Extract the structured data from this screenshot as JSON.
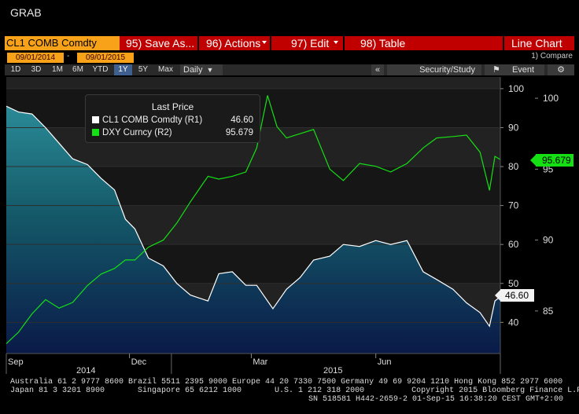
{
  "app_title": "GRAB",
  "toolbar": {
    "security": "CL1 COMB Comdty",
    "save": "95) Save As...",
    "actions": "96) Actions",
    "edit": "97) Edit",
    "table": "98) Table",
    "chart_type": "Line Chart"
  },
  "dates": {
    "start": "09/01/2014",
    "dash": "-",
    "end": "09/01/2015",
    "compare": "1) Compare"
  },
  "ranges": [
    "1D",
    "3D",
    "1M",
    "6M",
    "YTD",
    "1Y",
    "5Y",
    "Max"
  ],
  "active_range": "1Y",
  "period": "Daily",
  "toolbar2": {
    "collapse": "«",
    "security_study": "Security/Study",
    "event": "Event",
    "gear": "⚙"
  },
  "legend": {
    "title": "Last Price",
    "rows": [
      {
        "label": "CL1 COMB Comdty  (R1)",
        "value": "46.60",
        "color": "#ffffff"
      },
      {
        "label": "DXY Curncy  (R2)",
        "value": "95.679",
        "color": "#14e014"
      }
    ]
  },
  "badges": {
    "dxy_last": "95.679",
    "cl1_last": "46.60"
  },
  "colors": {
    "toolbar_red": "#c00000",
    "orange": "#f7a218",
    "green": "#14e014",
    "teal_top": "#1d6e7e",
    "navy_bottom": "#0a1a40"
  },
  "footer": {
    "line1": "Australia 61 2 9777 8600 Brazil 5511 2395 9000 Europe 44 20 7330 7500 Germany 49 69 9204 1210 Hong Kong 852 2977 6000",
    "line2": "Japan 81 3 3201 8900       Singapore 65 6212 1000       U.S. 1 212 318 2000          Copyright 2015 Bloomberg Finance L.P.",
    "line3": "SN 518581 H442-2659-2 01-Sep-15 16:38:20 CEST GMT+2:00"
  },
  "chart_data": {
    "type": "line",
    "title": "",
    "x_ticks": [
      "Sep",
      "Dec",
      "Mar",
      "Jun"
    ],
    "year_labels": [
      "2014",
      "2015"
    ],
    "r1_ticks": [
      "100",
      "90",
      "80",
      "70",
      "60",
      "50",
      "40"
    ],
    "r1_range": [
      32,
      103
    ],
    "r2_ticks": [
      "100",
      "95",
      "90",
      "85"
    ],
    "r2_range": [
      82,
      101.5
    ],
    "x_range": [
      "2014-09-01",
      "2015-09-01"
    ],
    "series": [
      {
        "name": "CL1 COMB Comdty",
        "axis": "R1",
        "color": "#ffffff",
        "x": [
          "2014-09-01",
          "2014-09-10",
          "2014-09-20",
          "2014-09-30",
          "2014-10-10",
          "2014-10-20",
          "2014-10-31",
          "2014-11-10",
          "2014-11-20",
          "2014-11-28",
          "2014-12-05",
          "2014-12-15",
          "2014-12-26",
          "2015-01-05",
          "2015-01-15",
          "2015-01-28",
          "2015-02-05",
          "2015-02-15",
          "2015-02-25",
          "2015-03-05",
          "2015-03-17",
          "2015-03-27",
          "2015-04-06",
          "2015-04-16",
          "2015-04-28",
          "2015-05-08",
          "2015-05-20",
          "2015-06-01",
          "2015-06-12",
          "2015-06-24",
          "2015-07-06",
          "2015-07-16",
          "2015-07-28",
          "2015-08-07",
          "2015-08-17",
          "2015-08-24",
          "2015-08-28",
          "2015-09-01"
        ],
        "values": [
          95.5,
          94.0,
          93.5,
          90.0,
          86.0,
          82.0,
          80.5,
          77.0,
          74.0,
          66.5,
          64.0,
          56.5,
          54.5,
          50.0,
          47.0,
          45.5,
          52.5,
          53.0,
          49.5,
          49.5,
          43.5,
          48.5,
          51.5,
          56.0,
          57.0,
          60.0,
          59.5,
          61.0,
          60.0,
          61.0,
          53.0,
          51.0,
          48.5,
          45.0,
          42.5,
          39.0,
          45.5,
          46.6
        ]
      },
      {
        "name": "DXY Curncy",
        "axis": "R2",
        "color": "#14e014",
        "x": [
          "2014-09-01",
          "2014-09-10",
          "2014-09-20",
          "2014-09-30",
          "2014-10-10",
          "2014-10-20",
          "2014-10-31",
          "2014-11-10",
          "2014-11-20",
          "2014-11-28",
          "2014-12-05",
          "2014-12-15",
          "2014-12-26",
          "2015-01-05",
          "2015-01-15",
          "2015-01-28",
          "2015-02-05",
          "2015-02-15",
          "2015-02-25",
          "2015-03-05",
          "2015-03-13",
          "2015-03-20",
          "2015-03-27",
          "2015-04-06",
          "2015-04-16",
          "2015-04-28",
          "2015-05-08",
          "2015-05-20",
          "2015-06-01",
          "2015-06-12",
          "2015-06-24",
          "2015-07-06",
          "2015-07-16",
          "2015-07-28",
          "2015-08-07",
          "2015-08-17",
          "2015-08-24",
          "2015-08-28",
          "2015-09-01"
        ],
        "values": [
          82.7,
          83.5,
          84.8,
          85.8,
          85.2,
          85.6,
          86.8,
          87.6,
          88.0,
          88.6,
          88.6,
          89.5,
          90.0,
          91.2,
          92.7,
          94.5,
          94.3,
          94.5,
          94.8,
          96.5,
          100.2,
          98.0,
          97.2,
          97.5,
          97.8,
          95.0,
          94.2,
          95.4,
          95.2,
          94.8,
          95.4,
          96.5,
          97.2,
          97.3,
          97.4,
          96.2,
          93.5,
          95.9,
          95.679
        ]
      }
    ]
  }
}
